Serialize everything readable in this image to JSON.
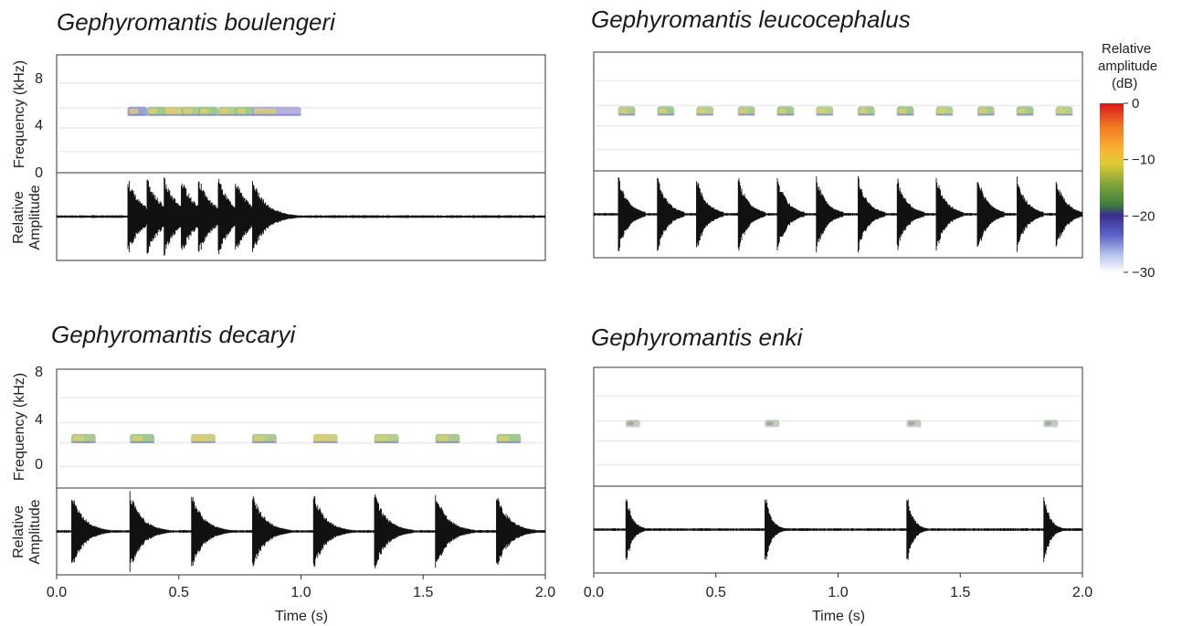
{
  "chart_data": [
    {
      "type": "spectrogram+oscillogram",
      "title": "Gephyromantis boulengeri",
      "xlabel": "",
      "xlim": [
        0,
        2.0
      ],
      "xticks": [],
      "freq_label": "Frequency (kHz)",
      "freq_ticks": [
        "8",
        "4",
        "0"
      ],
      "freq_ylim": [
        -1.5,
        10
      ],
      "amp_label": [
        "Relative",
        "Amplitude"
      ],
      "note_times": [
        0.29,
        0.37,
        0.44,
        0.51,
        0.58,
        0.66,
        0.73,
        0.8
      ],
      "note_widths": [
        0.08,
        0.08,
        0.08,
        0.08,
        0.08,
        0.08,
        0.08,
        0.2
      ],
      "note_freq_khz": 4.5,
      "note_colors": [
        "#8a8fd0",
        "#8fc07e",
        "#c8c56e",
        "#9fbf7e",
        "#8fc07e",
        "#a8c47a",
        "#8fc07e",
        "#a8a0d8"
      ]
    },
    {
      "type": "spectrogram+oscillogram",
      "title": "Gephyromantis leucocephalus",
      "xlabel": "",
      "xlim": [
        0,
        2.0
      ],
      "xticks": [],
      "freq_label": "",
      "freq_ticks": [],
      "freq_ylim": [
        -1.5,
        10
      ],
      "amp_label": [],
      "note_times": [
        0.1,
        0.26,
        0.42,
        0.59,
        0.75,
        0.91,
        1.08,
        1.24,
        1.4,
        1.57,
        1.73,
        1.89
      ],
      "note_widths": [
        0.07,
        0.07,
        0.07,
        0.07,
        0.07,
        0.07,
        0.07,
        0.07,
        0.07,
        0.07,
        0.07,
        0.07
      ],
      "note_freq_khz": 4.3,
      "note_colors": [
        "#9fbf7e",
        "#8fc07e",
        "#a8c47a",
        "#9fbf7e",
        "#8fc07e",
        "#a8c47a",
        "#9fbf7e",
        "#8fc07e",
        "#a8c47a",
        "#9fbf7e",
        "#8fc07e",
        "#a8c47a"
      ]
    },
    {
      "type": "spectrogram+oscillogram",
      "title": "Gephyromantis decaryi",
      "xlabel": "Time (s)",
      "xlim": [
        0,
        2.0
      ],
      "xticks": [
        "0.0",
        "0.5",
        "1.0",
        "1.5",
        "2.0"
      ],
      "freq_label": "Frequency (kHz)",
      "freq_ticks": [
        "8",
        "4",
        "0"
      ],
      "freq_ylim": [
        -2.8,
        8
      ],
      "amp_label": [
        "Relative",
        "Amplitude"
      ],
      "note_times": [
        0.06,
        0.3,
        0.55,
        0.8,
        1.05,
        1.3,
        1.55,
        1.8
      ],
      "note_widths": [
        0.1,
        0.1,
        0.1,
        0.1,
        0.1,
        0.1,
        0.1,
        0.1
      ],
      "note_freq_khz": 1.7,
      "note_colors": [
        "#9fbf7e",
        "#8fc07e",
        "#c8c56e",
        "#9fbf7e",
        "#c8c56e",
        "#a8c47a",
        "#9fbf7e",
        "#8fc07e"
      ]
    },
    {
      "type": "spectrogram+oscillogram",
      "title": "Gephyromantis enki",
      "xlabel": "Time (s)",
      "xlim": [
        0,
        2.0
      ],
      "xticks": [
        "0.0",
        "0.5",
        "1.0",
        "1.5",
        "2.0"
      ],
      "freq_label": "",
      "freq_ticks": [],
      "freq_ylim": [
        -2.8,
        8
      ],
      "amp_label": [],
      "note_times": [
        0.13,
        0.7,
        1.28,
        1.84
      ],
      "note_widths": [
        0.06,
        0.06,
        0.06,
        0.06
      ],
      "note_freq_khz": 2.9,
      "note_colors": [
        "#b9c2b0",
        "#b9c2b0",
        "#b9c2b0",
        "#b9c2b0"
      ]
    }
  ],
  "colorbar": {
    "label": [
      "Relative",
      "amplitude",
      "(dB)"
    ],
    "ticks": [
      "0",
      "−10",
      "−20",
      "−30"
    ],
    "tick_values": [
      0,
      -10,
      -20,
      -30
    ],
    "range": [
      0,
      -30
    ],
    "colors": [
      "#d7191c",
      "#f07a22",
      "#f7b733",
      "#dccb34",
      "#7fa43a",
      "#3d7f3c",
      "#3a2f8f",
      "#5a63c7",
      "#b8c6ec",
      "#ffffff"
    ]
  }
}
